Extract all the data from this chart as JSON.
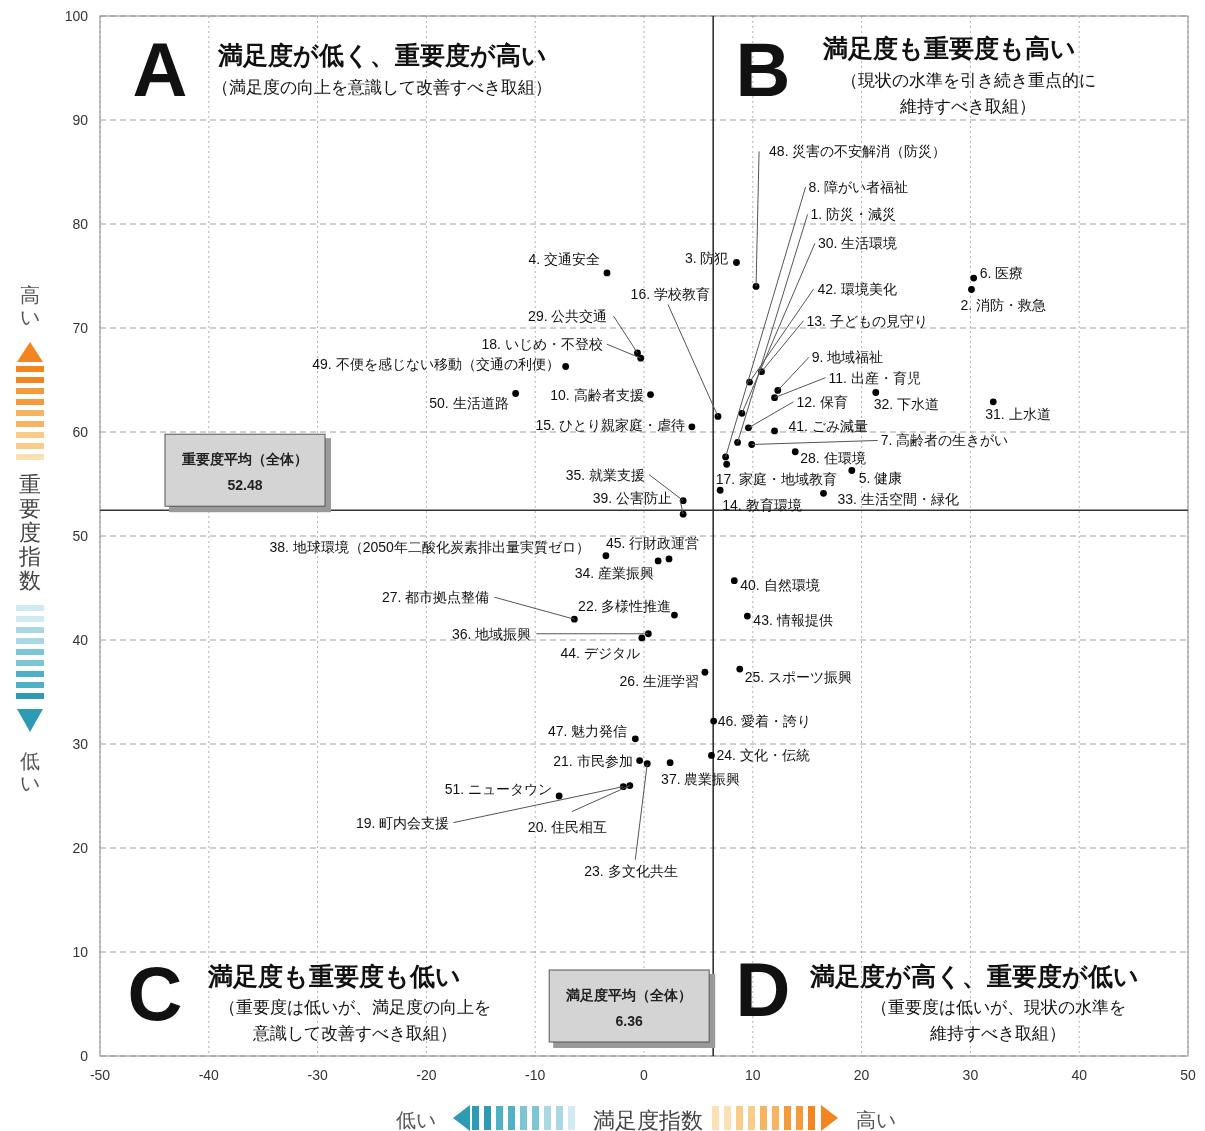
{
  "chart_data": {
    "type": "scatter",
    "xlabel": "満足度指数",
    "ylabel": "重要度指数",
    "xlim": [
      -50,
      50
    ],
    "ylim": [
      0,
      100
    ],
    "xticks": [
      -50,
      -40,
      -30,
      -20,
      -10,
      0,
      10,
      20,
      30,
      40,
      50
    ],
    "yticks": [
      0,
      10,
      20,
      30,
      40,
      50,
      60,
      70,
      80,
      90,
      100
    ],
    "grid": true,
    "marker": "circle",
    "series": [
      {
        "color": "#000000",
        "x": [
          8.6,
          30.1,
          8.5,
          -3.4,
          19.1,
          30.3,
          9.9,
          7.5,
          12.3,
          0.6,
          12.0,
          9.6,
          10.8,
          7.0,
          4.4,
          6.8,
          7.6,
          -0.3,
          -1.9,
          -1.3,
          -0.4,
          2.8,
          0.3,
          6.2,
          8.8,
          5.6,
          -6.4,
          13.9,
          -0.6,
          9.0,
          32.1,
          21.3,
          16.5,
          1.3,
          3.6,
          0.4,
          2.4,
          -3.5,
          3.6,
          8.3,
          12.0,
          9.7,
          9.5,
          -0.2,
          2.3,
          6.4,
          -0.8,
          10.3,
          -7.2,
          -11.8,
          -7.8
        ],
        "values": [
          59.0,
          73.7,
          76.3,
          75.3,
          56.3,
          74.8,
          58.8,
          57.6,
          64.0,
          63.6,
          63.3,
          60.4,
          65.8,
          54.4,
          60.5,
          61.5,
          56.9,
          67.1,
          25.9,
          26.0,
          28.4,
          42.4,
          28.1,
          28.9,
          37.2,
          36.9,
          42.0,
          58.1,
          67.6,
          61.8,
          62.9,
          63.8,
          54.1,
          47.6,
          53.4,
          40.6,
          28.2,
          48.1,
          52.1,
          45.7,
          60.1,
          64.8,
          42.3,
          40.2,
          47.8,
          32.2,
          30.5,
          74.0,
          66.3,
          63.7,
          25.0
        ]
      }
    ],
    "ref_lines": [
      {
        "axis": "y",
        "value": 52.48,
        "label": "重要度平均（全体）\n52.48",
        "color": "#333333"
      },
      {
        "axis": "x",
        "value": 6.36,
        "label": "満足度平均（全体）\n6.36",
        "color": "#333333"
      }
    ],
    "annotations": [
      {
        "text": "1. 防災・減災",
        "x": 8.6,
        "y": 59.0
      },
      {
        "text": "2. 消防・救急",
        "x": 30.1,
        "y": 73.7
      },
      {
        "text": "3. 防犯",
        "x": 8.5,
        "y": 76.3
      },
      {
        "text": "4. 交通安全",
        "x": -3.4,
        "y": 75.3
      },
      {
        "text": "5. 健康",
        "x": 19.1,
        "y": 56.3
      },
      {
        "text": "6. 医療",
        "x": 30.3,
        "y": 74.8
      },
      {
        "text": "7. 高齢者の生きがい",
        "x": 9.9,
        "y": 58.8
      },
      {
        "text": "8. 障がい者福祉",
        "x": 7.5,
        "y": 57.6
      },
      {
        "text": "9. 地域福祉",
        "x": 12.3,
        "y": 64.0
      },
      {
        "text": "10. 高齢者支援",
        "x": 0.6,
        "y": 63.6
      },
      {
        "text": "11. 出産・育児",
        "x": 12.0,
        "y": 63.3
      },
      {
        "text": "12. 保育",
        "x": 9.6,
        "y": 60.4
      },
      {
        "text": "13. 子どもの見守り",
        "x": 10.8,
        "y": 65.8
      },
      {
        "text": "14. 教育環境",
        "x": 7.0,
        "y": 54.4
      },
      {
        "text": "15. ひとり親家庭・虐待",
        "x": 4.4,
        "y": 60.5
      },
      {
        "text": "16. 学校教育",
        "x": 6.8,
        "y": 61.5
      },
      {
        "text": "17. 家庭・地域教育",
        "x": 7.6,
        "y": 56.9
      },
      {
        "text": "18. いじめ・不登校",
        "x": -0.3,
        "y": 67.1
      },
      {
        "text": "19. 町内会支援",
        "x": -1.9,
        "y": 25.9
      },
      {
        "text": "20. 住民相互",
        "x": -1.3,
        "y": 26.0
      },
      {
        "text": "21. 市民参加",
        "x": -0.4,
        "y": 28.4
      },
      {
        "text": "22. 多様性推進",
        "x": 2.8,
        "y": 42.4
      },
      {
        "text": "23. 多文化共生",
        "x": 0.3,
        "y": 28.1
      },
      {
        "text": "24. 文化・伝統",
        "x": 6.2,
        "y": 28.9
      },
      {
        "text": "25. スポーツ振興",
        "x": 8.8,
        "y": 37.2
      },
      {
        "text": "26. 生涯学習",
        "x": 5.6,
        "y": 36.9
      },
      {
        "text": "27. 都市拠点整備",
        "x": -6.4,
        "y": 42.0
      },
      {
        "text": "28. 住環境",
        "x": 13.9,
        "y": 58.1
      },
      {
        "text": "29. 公共交通",
        "x": -0.6,
        "y": 67.6
      },
      {
        "text": "30. 生活環境",
        "x": 9.0,
        "y": 61.8
      },
      {
        "text": "31. 上水道",
        "x": 32.1,
        "y": 62.9
      },
      {
        "text": "32. 下水道",
        "x": 21.3,
        "y": 63.8
      },
      {
        "text": "33. 生活空間・緑化",
        "x": 16.5,
        "y": 54.1
      },
      {
        "text": "34. 産業振興",
        "x": 1.3,
        "y": 47.6
      },
      {
        "text": "35. 就業支援",
        "x": 3.6,
        "y": 53.4
      },
      {
        "text": "36. 地域振興",
        "x": 0.4,
        "y": 40.6
      },
      {
        "text": "37. 農業振興",
        "x": 2.4,
        "y": 28.2
      },
      {
        "text": "38. 地球環境（2050年二酸化炭素排出量実質ゼロ）",
        "x": -3.5,
        "y": 48.1
      },
      {
        "text": "39. 公害防止",
        "x": 3.6,
        "y": 52.1
      },
      {
        "text": "40. 自然環境",
        "x": 8.3,
        "y": 45.7
      },
      {
        "text": "41. ごみ減量",
        "x": 12.0,
        "y": 60.1
      },
      {
        "text": "42. 環境美化",
        "x": 9.7,
        "y": 64.8
      },
      {
        "text": "43. 情報提供",
        "x": 9.5,
        "y": 42.3
      },
      {
        "text": "44. デジタル",
        "x": -0.2,
        "y": 40.2
      },
      {
        "text": "45. 行財政運営",
        "x": 2.3,
        "y": 47.8
      },
      {
        "text": "46. 愛着・誇り",
        "x": 6.4,
        "y": 32.2
      },
      {
        "text": "47. 魅力発信",
        "x": -0.8,
        "y": 30.5
      },
      {
        "text": "48. 災害の不安解消（防災）",
        "x": 10.3,
        "y": 74.0
      },
      {
        "text": "49. 不便を感じない移動（交通の利便）",
        "x": -7.2,
        "y": 66.3
      },
      {
        "text": "50. 生活道路",
        "x": -11.8,
        "y": 63.7
      },
      {
        "text": "51. ニュータウン",
        "x": -7.8,
        "y": 25.0
      },
      "A",
      "満足度が低く、重要度が高い",
      "（満足度の向上を意識して改善すべき取組）",
      "B",
      "満足度も重要度も高い",
      "（現状の水準を引き続き重点的に",
      "維持すべき取組）",
      "C",
      "満足度も重要度も低い",
      "（重要度は低いが、満足度の向上を",
      "意識して改善すべき取組）",
      "D",
      "満足度が高く、重要度が低い",
      "（重要度は低いが、現状の水準を",
      "維持すべき取組）",
      "低い",
      "高い",
      "高い",
      "低い"
    ]
  }
}
